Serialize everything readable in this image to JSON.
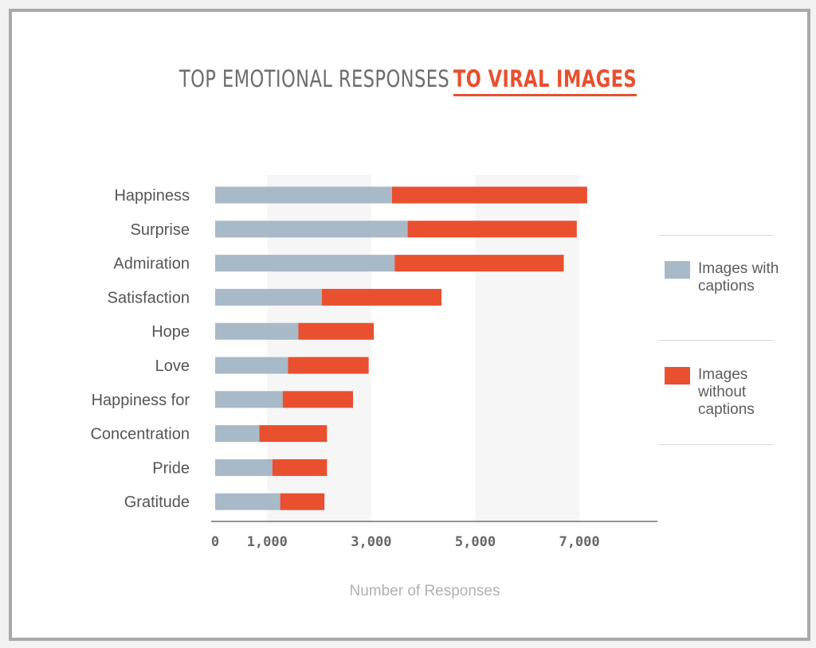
{
  "title": {
    "part1": "TOP EMOTIONAL RESPONSES",
    "part2": "TO VIRAL IMAGES"
  },
  "colors": {
    "with_captions": "#a8b9c8",
    "without_captions": "#e8502f"
  },
  "chart_data": {
    "type": "bar",
    "orientation": "horizontal",
    "stacked": true,
    "title": "TOP EMOTIONAL RESPONSES TO VIRAL IMAGES",
    "xlabel": "Number of Responses",
    "ylabel": "",
    "xlim": [
      0,
      8500
    ],
    "xticks": [
      0,
      1000,
      3000,
      5000,
      7000
    ],
    "xtick_labels": [
      "0",
      "1,000",
      "3,000",
      "5,000",
      "7,000"
    ],
    "categories": [
      "Happiness",
      "Surprise",
      "Admiration",
      "Satisfaction",
      "Hope",
      "Love",
      "Happiness for",
      "Concentration",
      "Pride",
      "Gratitude"
    ],
    "series": [
      {
        "name": "Images with captions",
        "color": "#a8b9c8",
        "values": [
          3400,
          3700,
          3450,
          2050,
          1600,
          1400,
          1300,
          850,
          1100,
          1250
        ]
      },
      {
        "name": "Images without captions",
        "color": "#e8502f",
        "values": [
          3750,
          3250,
          3250,
          2300,
          1450,
          1550,
          1350,
          1300,
          1050,
          850
        ]
      }
    ],
    "legend": [
      "Images with captions",
      "Images without captions"
    ],
    "legend_position": "right",
    "grid": false
  }
}
